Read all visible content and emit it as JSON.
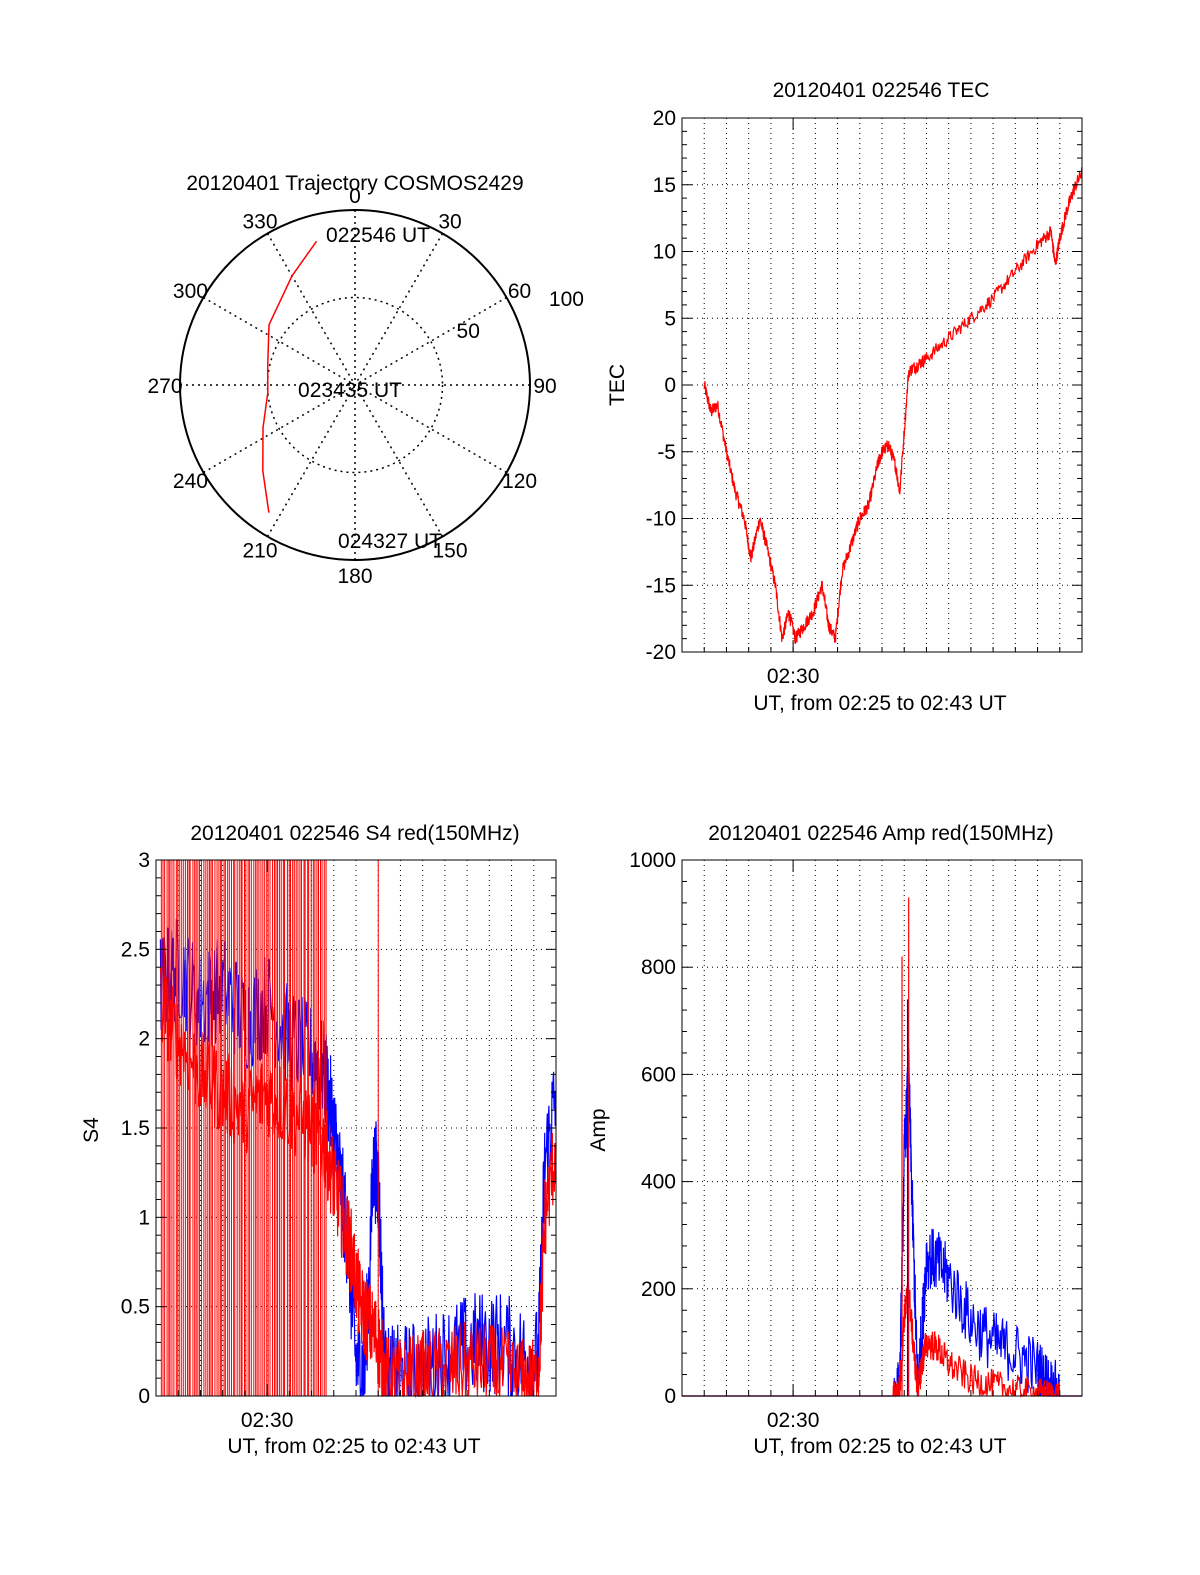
{
  "colors": {
    "red": "#ff0000",
    "blue": "#0000ff",
    "axis": "#000000",
    "grid": "#000000"
  },
  "chart_data": [
    {
      "id": "polar",
      "type": "polar-trajectory",
      "title": "20120401 Trajectory COSMOS2429",
      "azimuth_labels": [
        "0",
        "30",
        "60",
        "90",
        "120",
        "150",
        "180",
        "210",
        "240",
        "270",
        "300",
        "330"
      ],
      "radial_rings": [
        50,
        100
      ],
      "radial_labels": [
        "50",
        "100"
      ],
      "rmax": 100,
      "annotations": {
        "start": "022546 UT",
        "mid": "023435 UT",
        "end": "024327 UT"
      },
      "trajectory": {
        "color": "red",
        "points": [
          [
            345,
            85
          ],
          [
            330,
            72
          ],
          [
            305,
            60
          ],
          [
            282,
            51
          ],
          [
            265,
            50
          ],
          [
            245,
            58
          ],
          [
            227,
            72
          ],
          [
            214,
            88
          ]
        ]
      }
    },
    {
      "id": "tec",
      "type": "line",
      "title": "20120401 022546 TEC",
      "xlabel": "UT, from 02:25 to 02:43 UT",
      "ylabel": "TEC",
      "xlim": [
        0,
        18
      ],
      "ylim": [
        -20,
        20
      ],
      "yticks": [
        "20",
        "15",
        "10",
        "5",
        "0",
        "-5",
        "-10",
        "-15",
        "-20"
      ],
      "yticks_values": [
        20,
        15,
        10,
        5,
        0,
        -5,
        -10,
        -15,
        -20
      ],
      "xtick_labels": [
        {
          "value": 5,
          "label": "02:30"
        }
      ],
      "x_major": [
        5
      ],
      "grid_every": 1,
      "series": [
        {
          "color": "red",
          "noise": 0.5,
          "x": [
            1.0,
            1.3,
            1.6,
            2.0,
            2.4,
            2.8,
            3.1,
            3.5,
            3.8,
            4.2,
            4.5,
            4.8,
            5.1,
            5.5,
            5.9,
            6.3,
            6.6,
            6.9,
            7.2,
            7.6,
            8.0,
            8.4,
            8.8,
            9.0,
            9.3,
            9.6,
            9.8,
            10.2,
            10.6,
            11.0,
            12.0,
            13.0,
            14.0,
            15.0,
            16.0,
            16.6,
            16.8,
            17.0,
            17.3,
            17.6,
            18.0
          ],
          "y": [
            0,
            -2,
            -1.5,
            -5,
            -8,
            -10,
            -13,
            -10,
            -12,
            -15,
            -19,
            -17,
            -19,
            -18,
            -17,
            -15,
            -18,
            -19,
            -14,
            -12,
            -10,
            -9,
            -6,
            -5,
            -4.5,
            -6,
            -8,
            1,
            1.5,
            2,
            3.5,
            5,
            6.5,
            8.5,
            10.5,
            11.5,
            9,
            11,
            13,
            14.5,
            16
          ]
        }
      ]
    },
    {
      "id": "s4",
      "type": "line",
      "title": "20120401 022546 S4 red(150MHz)",
      "xlabel": "UT, from 02:25 to 02:43 UT",
      "ylabel": "S4",
      "xlim": [
        0,
        18
      ],
      "ylim": [
        0,
        3
      ],
      "yticks": [
        "3",
        "2.5",
        "2",
        "1.5",
        "1",
        "0.5",
        "0"
      ],
      "yticks_values": [
        3,
        2.5,
        2,
        1.5,
        1,
        0.5,
        0
      ],
      "xtick_labels": [
        {
          "value": 5,
          "label": "02:30"
        }
      ],
      "x_major": [
        5
      ],
      "grid_every": 1,
      "series": [
        {
          "color": "blue",
          "noise": 0.3,
          "x": [
            0.2,
            1.0,
            2.0,
            3.0,
            4.0,
            5.0,
            6.0,
            7.0,
            7.6,
            8.0,
            8.3,
            8.6,
            9.0,
            9.4,
            9.8,
            10.0,
            10.3,
            10.8,
            11.5,
            12.5,
            13.5,
            14.5,
            15.5,
            16.5,
            17.2,
            17.5,
            18.0
          ],
          "y": [
            2.3,
            2.4,
            2.2,
            2.3,
            2.1,
            2.2,
            2.0,
            1.9,
            1.8,
            1.5,
            1.2,
            0.9,
            0.2,
            0.15,
            1.3,
            1.2,
            0.1,
            0.1,
            0.12,
            0.18,
            0.25,
            0.3,
            0.3,
            0.22,
            0.2,
            1.3,
            1.7
          ]
        },
        {
          "color": "red",
          "noise": 0.25,
          "x": [
            0.2,
            1.0,
            2.0,
            3.0,
            4.0,
            5.0,
            6.0,
            7.0,
            7.6,
            8.0,
            8.4,
            8.8,
            9.2,
            9.6,
            10.0,
            10.3,
            10.8,
            11.5,
            12.5,
            13.5,
            14.5,
            15.5,
            16.5,
            17.2,
            17.5,
            18.0
          ],
          "y": [
            2.2,
            2.0,
            1.8,
            1.7,
            1.6,
            1.7,
            1.6,
            1.5,
            1.4,
            1.2,
            1.0,
            0.8,
            0.5,
            0.4,
            0.3,
            0.1,
            0.08,
            0.1,
            0.14,
            0.16,
            0.18,
            0.14,
            0.08,
            0.08,
            1.0,
            1.4
          ]
        }
      ],
      "red_spikes": {
        "from": 0.2,
        "to": 7.7,
        "count": 90,
        "extra": [
          10.0
        ]
      }
    },
    {
      "id": "amp",
      "type": "line",
      "title": "20120401 022546 Amp red(150MHz)",
      "xlabel": "UT, from 02:25 to 02:43 UT",
      "ylabel": "Amp",
      "xlim": [
        0,
        18
      ],
      "ylim": [
        0,
        1000
      ],
      "yticks": [
        "1000",
        "800",
        "600",
        "400",
        "200",
        "0"
      ],
      "yticks_values": [
        1000,
        800,
        600,
        400,
        200,
        0
      ],
      "xtick_labels": [
        {
          "value": 5,
          "label": "02:30"
        }
      ],
      "x_major": [
        5
      ],
      "grid_every": 1,
      "series": [
        {
          "color": "blue",
          "noise": 60,
          "x": [
            0,
            9.5,
            9.8,
            10.0,
            10.2,
            10.4,
            10.6,
            10.8,
            11.0,
            11.5,
            12.0,
            13.0,
            14.0,
            15.0,
            16.0,
            16.5,
            17.0,
            18.0
          ],
          "y": [
            0,
            0,
            10,
            450,
            600,
            300,
            20,
            120,
            260,
            250,
            220,
            140,
            100,
            80,
            50,
            20,
            0,
            0
          ]
        },
        {
          "color": "red",
          "noise": 30,
          "x": [
            0,
            9.5,
            9.8,
            10.0,
            10.2,
            10.4,
            10.6,
            10.8,
            11.0,
            11.5,
            12.0,
            13.0,
            14.0,
            15.0,
            16.0,
            16.5,
            17.0,
            18.0
          ],
          "y": [
            0,
            0,
            10,
            150,
            200,
            100,
            10,
            60,
            100,
            90,
            60,
            30,
            20,
            10,
            5,
            2,
            0,
            0
          ]
        }
      ],
      "peaks": [
        {
          "x": 10.2,
          "y": 930,
          "color": "red"
        },
        {
          "x": 9.9,
          "y": 820,
          "color": "red"
        },
        {
          "x": 10.15,
          "y": 740,
          "color": "blue"
        }
      ]
    }
  ]
}
